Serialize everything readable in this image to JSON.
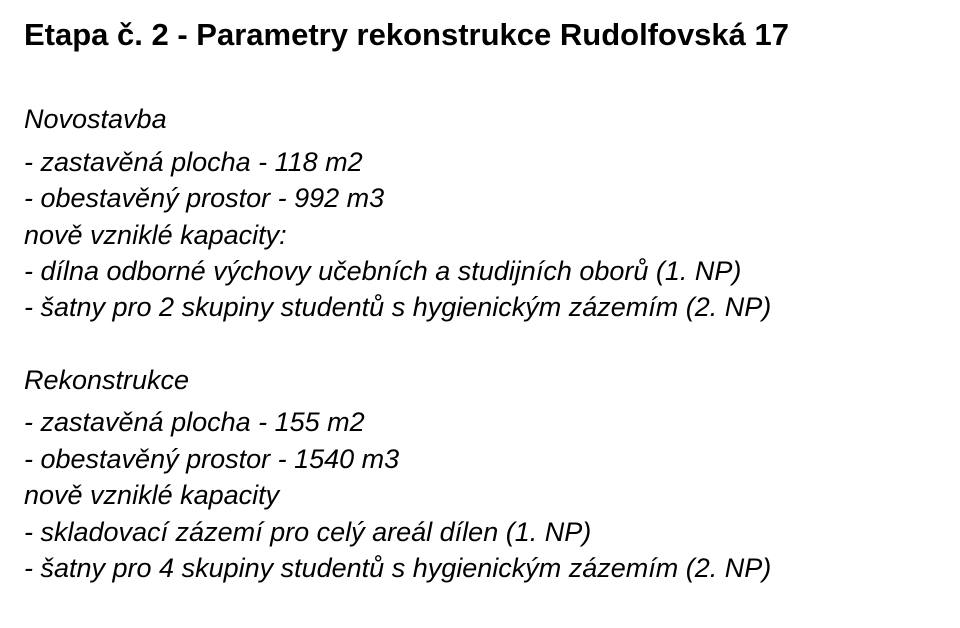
{
  "title": "Etapa č. 2 - Parametry rekonstrukce Rudolfovská 17",
  "novostavba": {
    "header": "Novostavba",
    "lines": [
      "- zastavěná plocha - 118 m2",
      "- obestavěný prostor - 992 m3",
      "nově vzniklé kapacity:",
      "- dílna odborné výchovy učebních a studijních oborů (1. NP)",
      "- šatny pro 2 skupiny studentů s hygienickým zázemím (2. NP)"
    ]
  },
  "rekonstrukce": {
    "header": "Rekonstrukce",
    "lines": [
      "- zastavěná plocha - 155 m2",
      "- obestavěný prostor - 1540 m3",
      "nově vzniklé kapacity",
      "- skladovací zázemí pro celý areál dílen (1. NP)",
      "- šatny pro 4 skupiny studentů s hygienickým zázemím (2. NP)"
    ]
  },
  "colors": {
    "background": "#ffffff",
    "text": "#000000"
  },
  "typography": {
    "title_fontsize": 31,
    "body_fontsize": 27,
    "title_weight": "bold",
    "body_style": "italic",
    "font_family": "Arial"
  }
}
